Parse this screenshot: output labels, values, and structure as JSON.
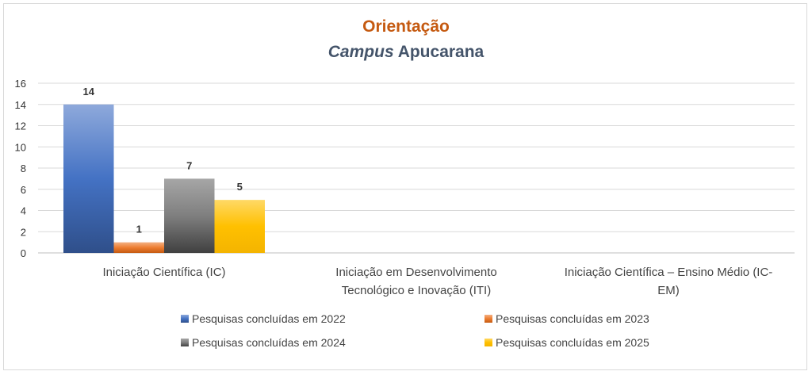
{
  "chart_data": {
    "type": "bar",
    "title": "Orientação",
    "subtitle_italic": "Campus",
    "subtitle_rest": "Apucarana",
    "categories": [
      [
        "Iniciação Científica (IC)"
      ],
      [
        "Iniciação em Desenvolvimento",
        "Tecnológico e Inovação (ITI)"
      ],
      [
        "Iniciação Científica – Ensino Médio (IC-",
        "EM)"
      ]
    ],
    "series": [
      {
        "name": "Pesquisas concluídas em 2022",
        "values": [
          14,
          null,
          null
        ],
        "color": "#4472c4"
      },
      {
        "name": "Pesquisas concluídas em 2023",
        "values": [
          1,
          null,
          null
        ],
        "color": "#ed7d31"
      },
      {
        "name": "Pesquisas concluídas em 2024",
        "values": [
          7,
          null,
          null
        ],
        "color": "#7f7f7f"
      },
      {
        "name": "Pesquisas concluídas em 2025",
        "values": [
          5,
          null,
          null
        ],
        "color": "#ffc000"
      }
    ],
    "ylim": [
      0,
      16
    ],
    "yticks": [
      0,
      2,
      4,
      6,
      8,
      10,
      12,
      14,
      16
    ],
    "grid": true,
    "legend_position": "bottom"
  }
}
